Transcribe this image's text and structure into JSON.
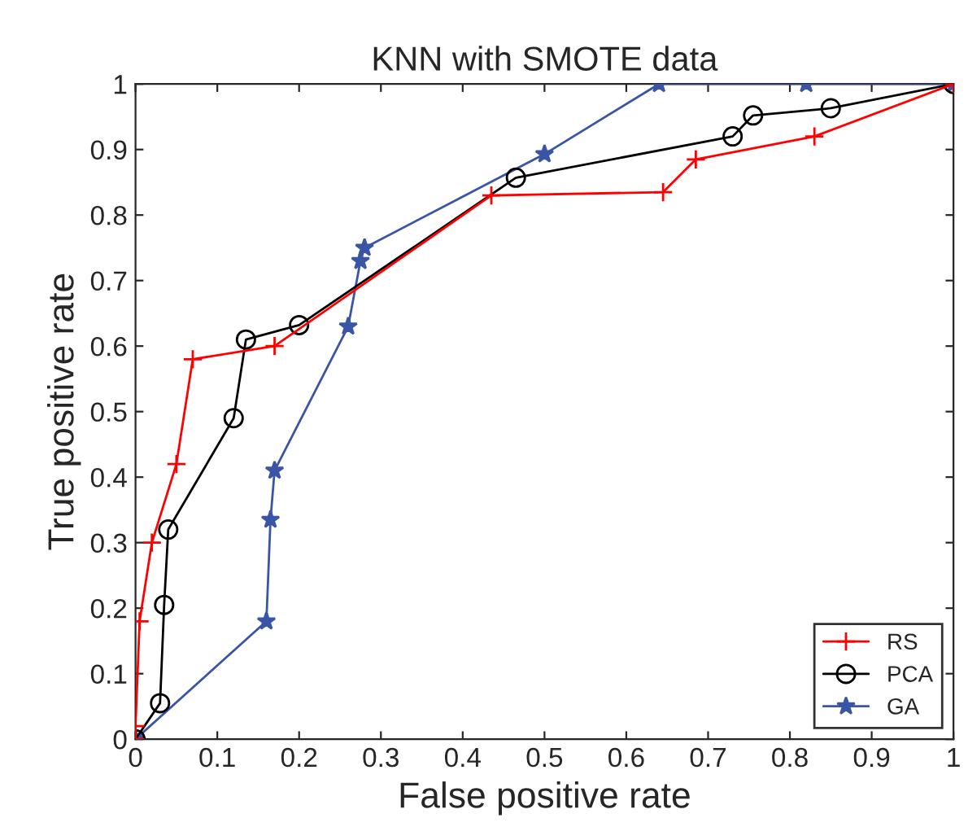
{
  "chart_data": {
    "type": "line",
    "title": "KNN with SMOTE data",
    "xlabel": "False positive rate",
    "ylabel": "True positive rate",
    "xlim": [
      0,
      1
    ],
    "ylim": [
      0,
      1
    ],
    "xticks": [
      0,
      0.1,
      0.2,
      0.3,
      0.4,
      0.5,
      0.6,
      0.7,
      0.8,
      0.9,
      1
    ],
    "yticks": [
      0,
      0.1,
      0.2,
      0.3,
      0.4,
      0.5,
      0.6,
      0.7,
      0.8,
      0.9,
      1
    ],
    "grid": false,
    "legend": "bottom right",
    "line_style": "solid",
    "series": [
      {
        "name": "RS",
        "color": "#ff0000",
        "marker": "cross",
        "x": [
          0,
          0,
          0.005,
          0.02,
          0.05,
          0.07,
          0.17,
          0.435,
          0.645,
          0.685,
          0.83,
          1
        ],
        "values": [
          0,
          0.02,
          0.18,
          0.3,
          0.42,
          0.58,
          0.6,
          0.83,
          0.835,
          0.885,
          0.92,
          1
        ]
      },
      {
        "name": "PCA",
        "color": "#000000",
        "marker": "circle",
        "x": [
          0,
          0.03,
          0.035,
          0.04,
          0.12,
          0.135,
          0.2,
          0.465,
          0.73,
          0.755,
          0.85,
          1
        ],
        "values": [
          0,
          0.055,
          0.205,
          0.32,
          0.49,
          0.61,
          0.632,
          0.857,
          0.92,
          0.952,
          0.963,
          1
        ]
      },
      {
        "name": "GA",
        "color": "#3a55a6",
        "marker": "star",
        "x": [
          0,
          0.16,
          0.165,
          0.17,
          0.26,
          0.275,
          0.28,
          0.5,
          0.64,
          0.82,
          1
        ],
        "values": [
          0,
          0.18,
          0.335,
          0.41,
          0.63,
          0.73,
          0.75,
          0.893,
          1,
          1,
          1
        ]
      }
    ]
  }
}
